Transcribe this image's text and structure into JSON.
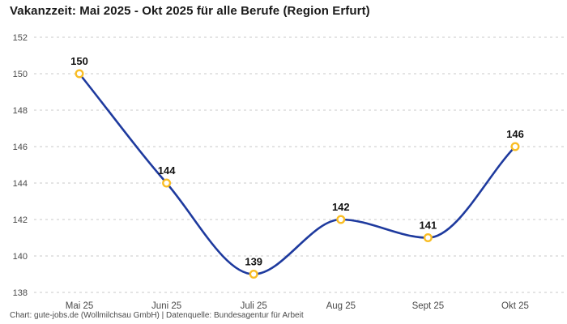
{
  "title": "Vakanzzeit: Mai 2025 - Okt 2025 für alle Berufe (Region Erfurt)",
  "footer": "Chart: gute-jobs.de (Wollmilchsau GmbH) | Datenquelle: Bundesagentur für Arbeit",
  "chart_data": {
    "type": "line",
    "title": "Vakanzzeit: Mai 2025 - Okt 2025 für alle Berufe (Region Erfurt)",
    "categories": [
      "Mai 25",
      "Juni 25",
      "Juli 25",
      "Aug 25",
      "Sept 25",
      "Okt 25"
    ],
    "values": [
      150,
      144,
      139,
      142,
      141,
      146
    ],
    "ylim": [
      138,
      152
    ],
    "y_ticks": [
      138,
      140,
      142,
      144,
      146,
      148,
      150,
      152
    ],
    "grid": "horizontal-dashed",
    "legend": "none",
    "smooth": true,
    "colors": {
      "line": "#1e3a9e",
      "marker_stroke": "#f9bd24",
      "marker_fill": "#ffffff",
      "gridline": "#c9c9c9",
      "tick_text": "#4a4a4a",
      "value_label": "#111111"
    }
  }
}
